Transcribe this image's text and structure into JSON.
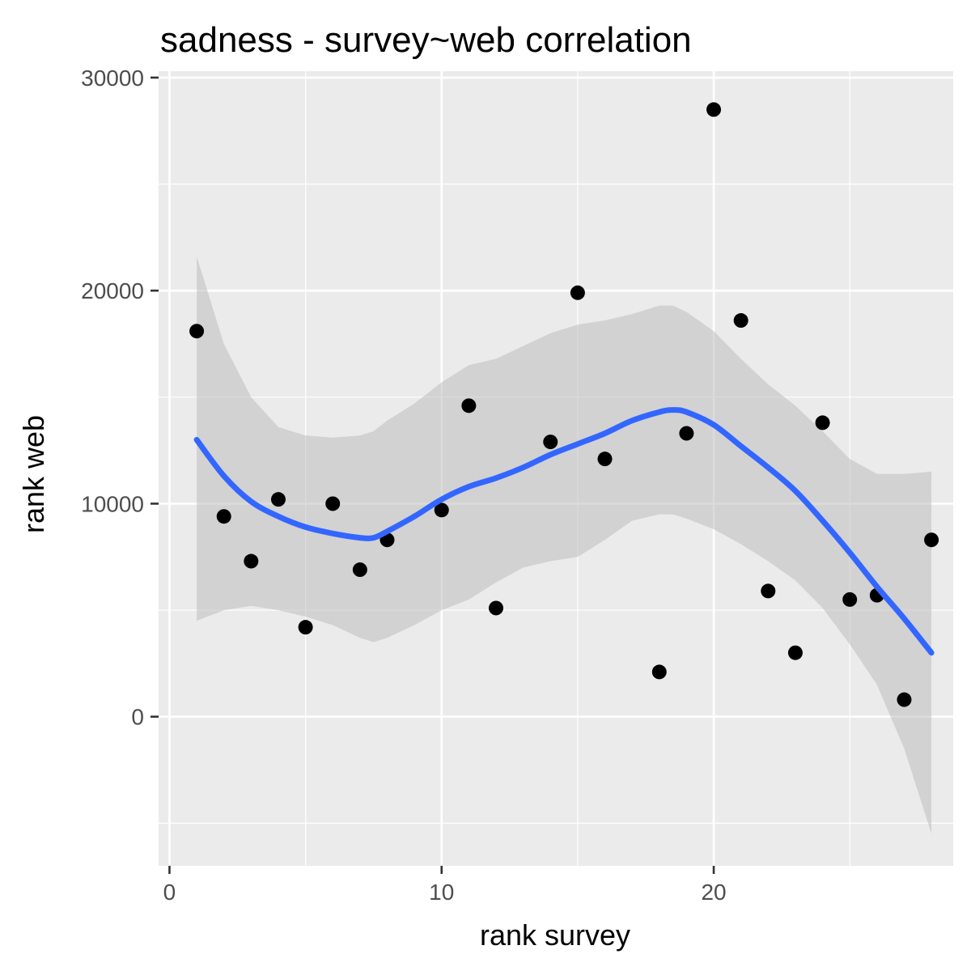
{
  "chart_data": {
    "type": "scatter",
    "title": "sadness - survey~web correlation",
    "xlabel": "rank survey",
    "ylabel": "rank web",
    "xlim": [
      -0.4,
      28.8
    ],
    "ylim": [
      -7000,
      30300
    ],
    "x_ticks": [
      0,
      10,
      20
    ],
    "x_tick_labels": [
      "0",
      "10",
      "20"
    ],
    "y_ticks": [
      0,
      10000,
      20000,
      30000
    ],
    "y_tick_labels": [
      "0",
      "10000",
      "20000",
      "30000"
    ],
    "grid": true,
    "panel_background": "#ebebeb",
    "grid_color": "#ffffff",
    "point_color": "#000000",
    "smooth_color": "#3366ff",
    "ribbon_color": "#bdbdbd",
    "points": [
      {
        "x": 1,
        "y": 18100
      },
      {
        "x": 2,
        "y": 9400
      },
      {
        "x": 3,
        "y": 7300
      },
      {
        "x": 4,
        "y": 10200
      },
      {
        "x": 5,
        "y": 4200
      },
      {
        "x": 6,
        "y": 10000
      },
      {
        "x": 7,
        "y": 6900
      },
      {
        "x": 8,
        "y": 8300
      },
      {
        "x": 10,
        "y": 9700
      },
      {
        "x": 11,
        "y": 14600
      },
      {
        "x": 12,
        "y": 5100
      },
      {
        "x": 14,
        "y": 12900
      },
      {
        "x": 15,
        "y": 19900
      },
      {
        "x": 16,
        "y": 12100
      },
      {
        "x": 18,
        "y": 2100
      },
      {
        "x": 19,
        "y": 13300
      },
      {
        "x": 20,
        "y": 28500
      },
      {
        "x": 21,
        "y": 18600
      },
      {
        "x": 22,
        "y": 5900
      },
      {
        "x": 23,
        "y": 3000
      },
      {
        "x": 24,
        "y": 13800
      },
      {
        "x": 25,
        "y": 5500
      },
      {
        "x": 26,
        "y": 5700
      },
      {
        "x": 27,
        "y": 800
      },
      {
        "x": 28,
        "y": 8300
      }
    ],
    "smooth": {
      "x": [
        1,
        2,
        3,
        4,
        5,
        6,
        7,
        7.5,
        8,
        9,
        10,
        11,
        12,
        13,
        14,
        15,
        16,
        17,
        18,
        18.5,
        19,
        20,
        21,
        22,
        23,
        24,
        25,
        26,
        27,
        28
      ],
      "y": [
        13000,
        11300,
        10100,
        9400,
        8900,
        8600,
        8400,
        8400,
        8700,
        9400,
        10200,
        10800,
        11200,
        11700,
        12300,
        12800,
        13300,
        13900,
        14300,
        14400,
        14300,
        13700,
        12700,
        11700,
        10600,
        9200,
        7700,
        6100,
        4600,
        3000
      ],
      "lower": [
        4500,
        5000,
        5200,
        5000,
        4700,
        4300,
        3700,
        3500,
        3700,
        4300,
        5000,
        5500,
        6300,
        7000,
        7300,
        7500,
        8300,
        9200,
        9500,
        9500,
        9300,
        8800,
        8100,
        7300,
        6400,
        5100,
        3400,
        1500,
        -1500,
        -5500
      ],
      "upper": [
        21600,
        17500,
        15000,
        13600,
        13200,
        13100,
        13200,
        13400,
        13900,
        14700,
        15700,
        16500,
        16800,
        17400,
        18000,
        18400,
        18600,
        18900,
        19300,
        19300,
        19000,
        18100,
        16800,
        15600,
        14600,
        13400,
        12100,
        11400,
        11400,
        11500
      ]
    }
  }
}
